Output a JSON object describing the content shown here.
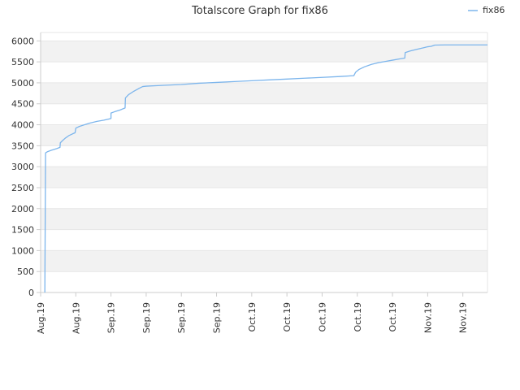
{
  "chart_data": {
    "type": "line",
    "title": "Totalscore Graph for fix86",
    "xlabel": "",
    "ylabel": "",
    "ylim": [
      0,
      6200
    ],
    "yticks": [
      0,
      500,
      1000,
      1500,
      2000,
      2500,
      3000,
      3500,
      4000,
      4500,
      5000,
      5500,
      6000
    ],
    "x_tick_labels": [
      "Aug.19",
      "Aug.19",
      "Sep.19",
      "Sep.19",
      "Sep.19",
      "Sep.19",
      "Oct.19",
      "Oct.19",
      "Oct.19",
      "Oct.19",
      "Oct.19",
      "Nov.19",
      "Nov.19"
    ],
    "x_range": [
      0,
      12.7
    ],
    "grid": true,
    "legend_position": "top-right",
    "colors": {
      "series": "#7cb5ec",
      "band": "#f2f2f2",
      "grid": "#e6e6e6",
      "axis": "#cccccc"
    },
    "series": [
      {
        "name": "fix86",
        "points": [
          [
            0.12,
            0
          ],
          [
            0.14,
            3330
          ],
          [
            0.2,
            3360
          ],
          [
            0.3,
            3390
          ],
          [
            0.45,
            3430
          ],
          [
            0.55,
            3460
          ],
          [
            0.56,
            3570
          ],
          [
            0.62,
            3620
          ],
          [
            0.7,
            3680
          ],
          [
            0.8,
            3740
          ],
          [
            0.9,
            3780
          ],
          [
            0.98,
            3810
          ],
          [
            1.0,
            3920
          ],
          [
            1.1,
            3960
          ],
          [
            1.25,
            4000
          ],
          [
            1.4,
            4040
          ],
          [
            1.6,
            4080
          ],
          [
            1.8,
            4110
          ],
          [
            1.95,
            4140
          ],
          [
            2.0,
            4150
          ],
          [
            2.0,
            4280
          ],
          [
            2.1,
            4310
          ],
          [
            2.25,
            4350
          ],
          [
            2.4,
            4400
          ],
          [
            2.41,
            4640
          ],
          [
            2.5,
            4720
          ],
          [
            2.65,
            4800
          ],
          [
            2.8,
            4870
          ],
          [
            2.9,
            4910
          ],
          [
            3.0,
            4920
          ],
          [
            3.5,
            4940
          ],
          [
            4.0,
            4960
          ],
          [
            4.5,
            4990
          ],
          [
            5.0,
            5010
          ],
          [
            5.5,
            5030
          ],
          [
            6.0,
            5050
          ],
          [
            6.5,
            5070
          ],
          [
            7.0,
            5090
          ],
          [
            7.5,
            5110
          ],
          [
            8.0,
            5130
          ],
          [
            8.5,
            5150
          ],
          [
            8.9,
            5170
          ],
          [
            8.95,
            5250
          ],
          [
            9.05,
            5320
          ],
          [
            9.2,
            5380
          ],
          [
            9.4,
            5440
          ],
          [
            9.6,
            5480
          ],
          [
            9.8,
            5510
          ],
          [
            10.0,
            5540
          ],
          [
            10.2,
            5570
          ],
          [
            10.35,
            5590
          ],
          [
            10.36,
            5720
          ],
          [
            10.5,
            5760
          ],
          [
            10.7,
            5800
          ],
          [
            10.9,
            5840
          ],
          [
            11.0,
            5860
          ],
          [
            11.1,
            5870
          ],
          [
            11.2,
            5900
          ],
          [
            11.5,
            5905
          ],
          [
            12.0,
            5905
          ],
          [
            12.7,
            5905
          ]
        ]
      }
    ]
  }
}
